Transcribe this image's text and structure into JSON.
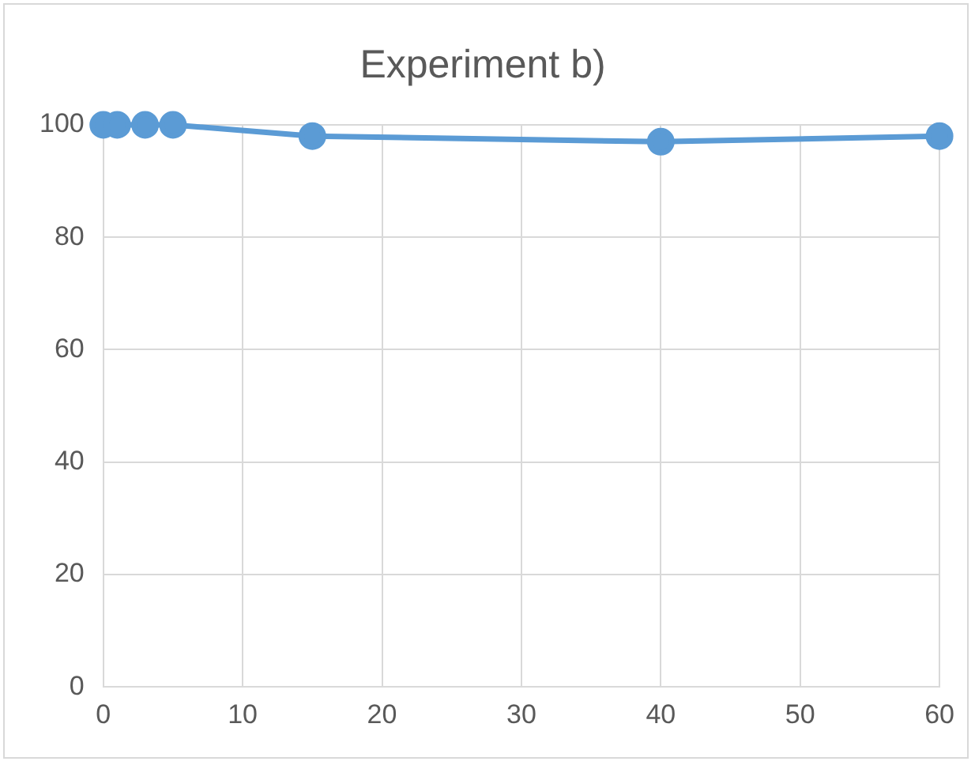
{
  "chart_data": {
    "type": "line",
    "title": "Experiment b)",
    "x": [
      0,
      1,
      3,
      5,
      15,
      40,
      60
    ],
    "series": [
      {
        "color": "#5b9bd5",
        "values": [
          100,
          100,
          100,
          100,
          98,
          97,
          98
        ]
      }
    ],
    "xlim": [
      0,
      60
    ],
    "xticks": [
      0,
      10,
      20,
      30,
      40,
      50,
      60
    ],
    "ylim": [
      0,
      100
    ],
    "yticks": [
      0,
      20,
      40,
      60,
      80,
      100
    ],
    "grid": true,
    "legend": false,
    "marker": "circle",
    "line_style": "solid"
  }
}
